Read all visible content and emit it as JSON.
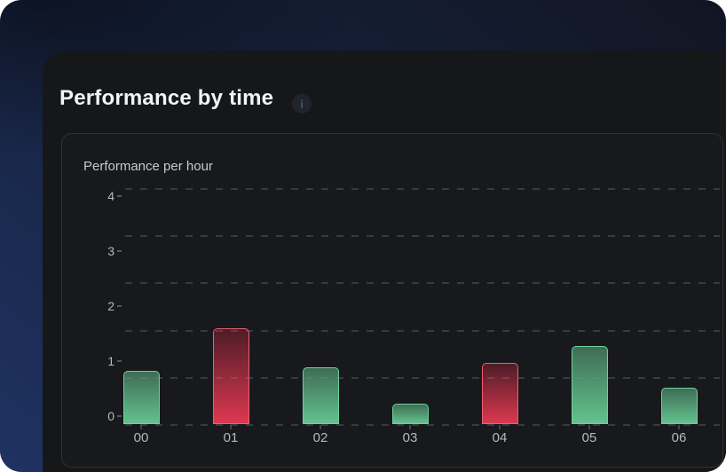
{
  "page": {
    "title": "Performance by time",
    "info_icon_glyph": "i"
  },
  "chart_card": {
    "title": "Performance per hour"
  },
  "chart_data": {
    "type": "bar",
    "title": "Performance per hour",
    "categories": [
      "00",
      "01",
      "02",
      "03",
      "04",
      "05",
      "06"
    ],
    "values": [
      0.82,
      1.59,
      0.89,
      0.22,
      0.97,
      1.27,
      0.51
    ],
    "bar_colors": [
      "green",
      "red",
      "green",
      "green",
      "red",
      "green",
      "green"
    ],
    "palette": {
      "green": {
        "border": "#6fd19c",
        "gradient_top": "#3f6c56",
        "gradient_bottom": "#63c28d"
      },
      "red": {
        "border": "#ef5f6d",
        "gradient_top": "#4f1c27",
        "gradient_bottom": "#dc3850"
      }
    },
    "xlabel": "",
    "ylabel": "",
    "yticks": [
      0,
      1,
      2,
      3,
      4
    ],
    "ylim": [
      0,
      4.3
    ],
    "grid": "dashed-horizontal",
    "legend": "none"
  },
  "colors": {
    "positive": "#63c28d",
    "negative": "#dc3850",
    "panel_background": "#161719",
    "page_gradient_blue": "#1f3262"
  }
}
